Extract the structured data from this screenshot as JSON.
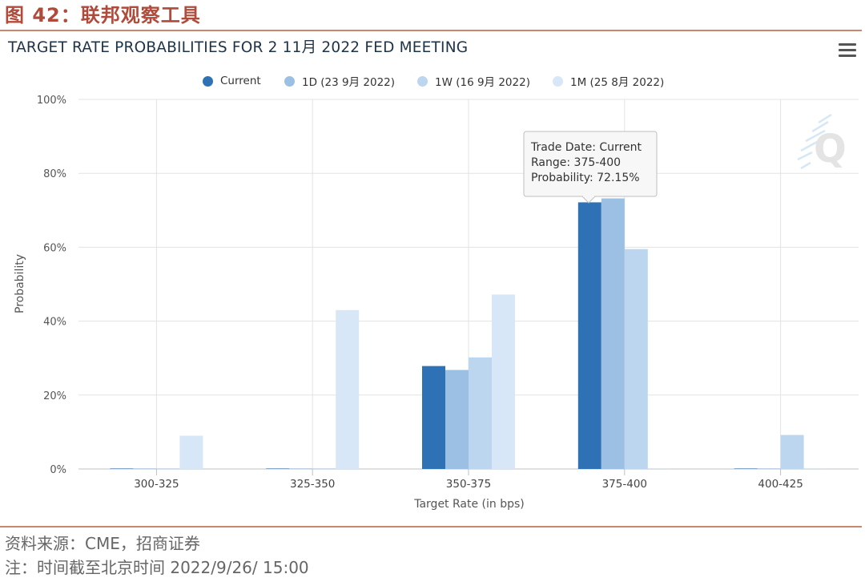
{
  "figure_title": "图 42：联邦观察工具",
  "chart_title": "TARGET RATE PROBABILITIES FOR 2 11月 2022 FED MEETING",
  "menu_icon": "hamburger-menu-icon",
  "watermark_icon": "q-logo-icon",
  "tooltip": {
    "line1": "Trade Date: Current",
    "line2": "Range: 375-400",
    "line3": "Probability: 72.15%"
  },
  "source_note": "资料来源：CME，招商证券",
  "time_note": "注：时间截至北京时间 2022/9/26/ 15:00",
  "chart_data": {
    "type": "bar",
    "categories": [
      "300-325",
      "325-350",
      "350-375",
      "375-400",
      "400-425"
    ],
    "series": [
      {
        "name": "Current",
        "color": "#2e72b5",
        "values": [
          0,
          0,
          27.85,
          72.15,
          0
        ]
      },
      {
        "name": "1D (23 9月 2022)",
        "color": "#9bc0e4",
        "values": [
          0,
          0,
          26.8,
          73.2,
          0
        ]
      },
      {
        "name": "1W (16 9月 2022)",
        "color": "#bcd6ef",
        "values": [
          0,
          0,
          30.2,
          59.5,
          9.2
        ]
      },
      {
        "name": "1M (25 8月 2022)",
        "color": "#d8e7f7",
        "values": [
          9.0,
          43.0,
          47.2,
          0,
          0
        ]
      }
    ],
    "xlabel": "Target Rate (in bps)",
    "ylabel": "Probability",
    "ylim": [
      0,
      100
    ],
    "yticks": [
      "0%",
      "20%",
      "40%",
      "60%",
      "80%",
      "100%"
    ],
    "grid": true,
    "legend_position": "top"
  }
}
